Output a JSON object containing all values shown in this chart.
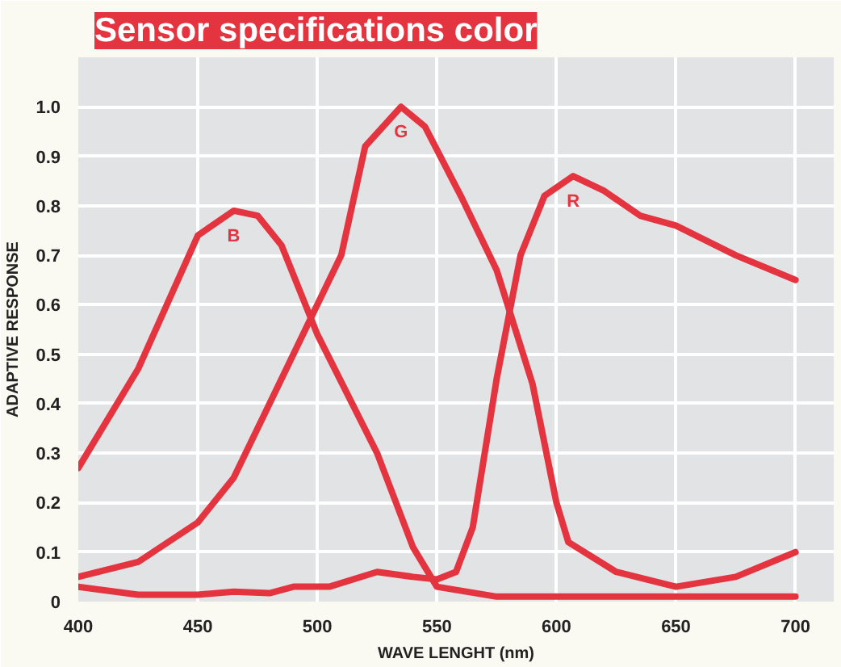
{
  "chart_data": {
    "type": "line",
    "title": "Sensor specifications color",
    "xlabel": "WAVE LENGHT (nm)",
    "ylabel": "ADAPTIVE RESPONSE",
    "xlim": [
      400,
      716
    ],
    "xticks": [
      400,
      450,
      500,
      550,
      600,
      650,
      700
    ],
    "ylim": [
      0,
      1.1
    ],
    "yticks": [
      {
        "value": 0,
        "label": "0"
      },
      0.1,
      0.2,
      0.3,
      0.4,
      0.5,
      0.6,
      0.7,
      0.8,
      0.9,
      {
        "value": 1,
        "label": "1.0"
      }
    ],
    "grid": true,
    "line_style": "solid",
    "marker": "none",
    "series": [
      {
        "name": "B",
        "color": "#e3343f",
        "x": [
          400,
          425,
          450,
          465,
          475,
          485,
          500,
          525,
          540,
          550,
          575,
          600,
          650,
          700
        ],
        "values": [
          0.27,
          0.47,
          0.74,
          0.79,
          0.78,
          0.72,
          0.54,
          0.3,
          0.11,
          0.03,
          0.01,
          0.01,
          0.01,
          0.01
        ]
      },
      {
        "name": "G",
        "color": "#e3343f",
        "x": [
          400,
          425,
          450,
          465,
          475,
          500,
          510,
          520,
          535,
          545,
          560,
          575,
          590,
          600,
          605,
          625,
          650,
          675,
          700
        ],
        "values": [
          0.05,
          0.08,
          0.16,
          0.25,
          0.35,
          0.6,
          0.7,
          0.92,
          1.0,
          0.96,
          0.82,
          0.67,
          0.44,
          0.2,
          0.12,
          0.06,
          0.03,
          0.05,
          0.1
        ]
      },
      {
        "name": "R",
        "color": "#e3343f",
        "x": [
          400,
          425,
          450,
          465,
          480,
          490,
          505,
          525,
          540,
          550,
          558,
          565,
          575,
          585,
          595,
          607,
          620,
          635,
          650,
          675,
          690,
          700
        ],
        "values": [
          0.03,
          0.014,
          0.014,
          0.02,
          0.017,
          0.03,
          0.03,
          0.06,
          0.05,
          0.045,
          0.06,
          0.15,
          0.45,
          0.7,
          0.82,
          0.86,
          0.83,
          0.78,
          0.76,
          0.7,
          0.67,
          0.65
        ]
      }
    ]
  }
}
